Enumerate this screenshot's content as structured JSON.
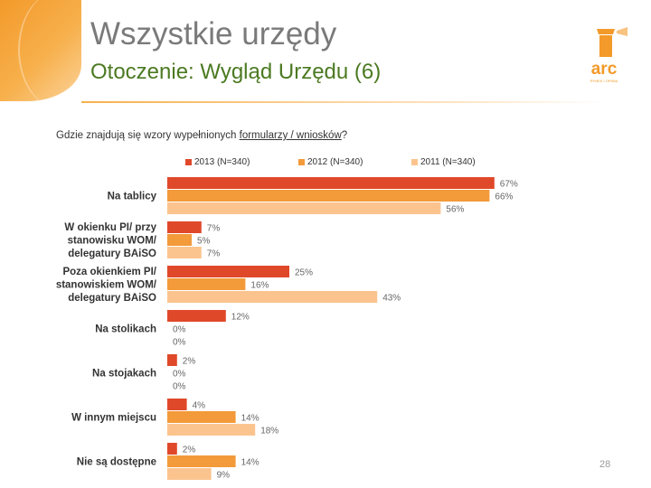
{
  "header": {
    "title": "Wszystkie urzędy",
    "subtitle": "Otoczenie: Wygląd Urzędu (6)"
  },
  "logo": {
    "text": "arc",
    "tagline": "RYNEK I OPINIA",
    "icon": "lighthouse-logo",
    "color": "#f39a2a"
  },
  "question": {
    "prefix": "Gdzie znajdują się wzory wypełnionych ",
    "underlined": "formularzy / wniosków",
    "suffix": "?"
  },
  "page_number": "28",
  "chart_data": {
    "type": "bar",
    "orientation": "horizontal",
    "value_suffix": "%",
    "xlim": [
      0,
      100
    ],
    "grid": false,
    "legend_position": "top",
    "categories": [
      [
        "Na tablicy"
      ],
      [
        "W okienku PI/ przy",
        "stanowisku WOM/",
        "delegatury BAiSO"
      ],
      [
        "Poza okienkiem PI/",
        "stanowiskiem WOM/",
        "delegatury BAiSO"
      ],
      [
        "Na stolikach"
      ],
      [
        "Na stojakach"
      ],
      [
        "W innym miejscu"
      ],
      [
        "Nie są dostępne"
      ]
    ],
    "series": [
      {
        "name": "2013 (N=340)",
        "color": "#e0482a",
        "values": [
          67,
          7,
          25,
          12,
          2,
          4,
          2
        ]
      },
      {
        "name": "2012 (N=340)",
        "color": "#f39a3a",
        "values": [
          66,
          5,
          16,
          0,
          0,
          14,
          14
        ]
      },
      {
        "name": "2011 (N=340)",
        "color": "#fbc48e",
        "values": [
          56,
          7,
          43,
          0,
          0,
          18,
          9
        ]
      }
    ]
  }
}
